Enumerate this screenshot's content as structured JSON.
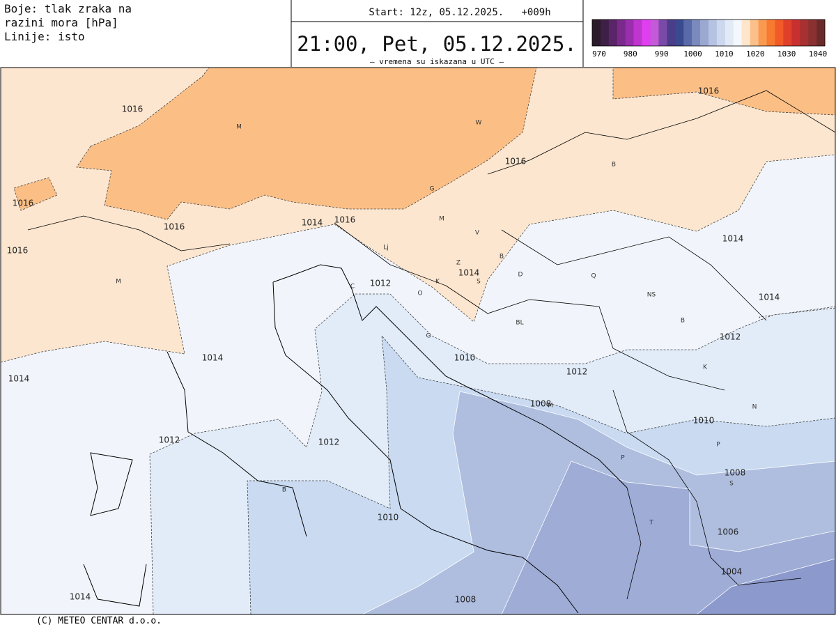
{
  "header": {
    "legend_lines": [
      "Boje: tlak zraka na",
      "razini mora [hPa]",
      "Linije: isto"
    ],
    "start": "Start: 12z, 05.12.2025.   +009h",
    "valid_time": "21:00, Pet, 05.12.2025.",
    "note": "– vremena su iskazana u UTC –"
  },
  "colorbar": {
    "colors": [
      "#2a1a2a",
      "#3e1f45",
      "#5a2468",
      "#7a2a8a",
      "#9a2fae",
      "#bf36cf",
      "#e03ff0",
      "#c45ad8",
      "#7a4aa8",
      "#4a3d8a",
      "#3a4a8e",
      "#5a6aa8",
      "#7a8abe",
      "#9aa8d2",
      "#b6c2e2",
      "#cdd8ee",
      "#e2eaf6",
      "#f4f7fc",
      "#fde6cc",
      "#fbc08a",
      "#f99a50",
      "#f77a30",
      "#f25a28",
      "#e0402a",
      "#c83030",
      "#a83030",
      "#8a3030",
      "#6a2a2a"
    ],
    "ticks": [
      970,
      980,
      990,
      1000,
      1010,
      1020,
      1030,
      1040
    ]
  },
  "isobar_labels": [
    1016,
    1016,
    1016,
    1016,
    1016,
    1016,
    1014,
    1016,
    1012,
    1014,
    1014,
    1014,
    1012,
    1014,
    1014,
    1010,
    1012,
    1008,
    1010,
    1012,
    1012,
    1008,
    1010,
    1006,
    1004,
    1008,
    1014
  ],
  "place_labels": [
    "M",
    "W",
    "B",
    "G",
    "M",
    "V",
    "Lj",
    "Z",
    "B",
    "S",
    "D",
    "Q",
    "K",
    "O",
    "NS",
    "B",
    "BL",
    "G",
    "K",
    "N",
    "M",
    "P",
    "P",
    "S",
    "T",
    "M",
    "B",
    "C"
  ],
  "footer": "(C) METEO CENTAR d.o.o."
}
